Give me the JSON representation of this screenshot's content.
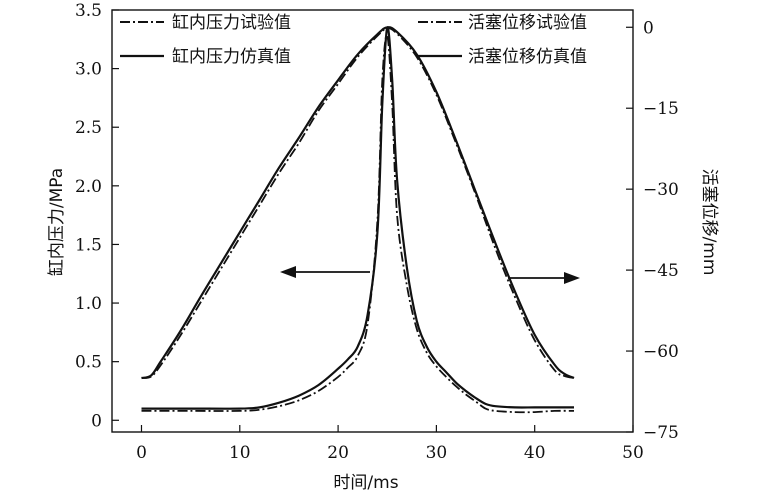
{
  "chart_data": {
    "type": "line",
    "title": "",
    "xlabel": "时间/ms",
    "ylabel_left": "缸内压力/MPa",
    "ylabel_right": "活塞位移/mm",
    "xlim": [
      -3,
      50
    ],
    "ylim_left": [
      -0.1,
      3.5
    ],
    "ylim_right": [
      -75,
      3.2
    ],
    "x_ticks": [
      "0",
      "10",
      "20",
      "30",
      "40",
      "50"
    ],
    "y_left_ticks": [
      "0",
      "0.5",
      "1.0",
      "1.5",
      "2.0",
      "2.5",
      "3.0",
      "3.5"
    ],
    "y_right_ticks": [
      "0",
      "−15",
      "−30",
      "−45",
      "−60",
      "−75"
    ],
    "grid": false,
    "legend_left": [
      "缸内压力试验值",
      "缸内压力仿真值"
    ],
    "legend_right": [
      "活塞位移试验值",
      "活塞位移仿真值"
    ],
    "series": [
      {
        "name": "缸内压力试验值",
        "axis": "left",
        "style": "dashdot",
        "x": [
          0,
          5,
          10,
          12,
          14,
          16,
          18,
          20,
          21,
          22,
          23,
          24,
          24.5,
          25,
          25.5,
          26,
          27,
          28,
          29,
          30,
          31,
          32,
          33,
          34,
          35,
          36,
          38,
          40,
          42,
          44
        ],
        "y": [
          0.08,
          0.08,
          0.08,
          0.09,
          0.12,
          0.17,
          0.25,
          0.37,
          0.45,
          0.55,
          0.82,
          1.7,
          2.9,
          3.28,
          2.7,
          1.75,
          1.15,
          0.78,
          0.58,
          0.46,
          0.37,
          0.29,
          0.22,
          0.16,
          0.1,
          0.08,
          0.07,
          0.07,
          0.08,
          0.08
        ]
      },
      {
        "name": "缸内压力仿真值",
        "axis": "left",
        "style": "solid",
        "x": [
          0,
          5,
          10,
          12,
          14,
          16,
          18,
          20,
          21,
          22,
          23,
          24,
          24.5,
          25,
          25.5,
          26,
          27,
          28,
          29,
          30,
          31,
          32,
          33,
          34,
          35,
          36,
          38,
          40,
          42,
          44
        ],
        "y": [
          0.1,
          0.1,
          0.1,
          0.11,
          0.15,
          0.21,
          0.3,
          0.44,
          0.52,
          0.63,
          0.9,
          1.6,
          2.7,
          3.35,
          2.9,
          2.05,
          1.3,
          0.85,
          0.63,
          0.5,
          0.41,
          0.32,
          0.25,
          0.19,
          0.14,
          0.12,
          0.11,
          0.11,
          0.11,
          0.11
        ]
      },
      {
        "name": "活塞位移试验值",
        "axis": "right",
        "style": "dashdot",
        "x": [
          0,
          1,
          2,
          4,
          6,
          8,
          10,
          12,
          14,
          16,
          18,
          20,
          22,
          24,
          25,
          26,
          28,
          30,
          32,
          34,
          36,
          38,
          40,
          42,
          43,
          44
        ],
        "y": [
          -65,
          -64.7,
          -62.5,
          -57,
          -51,
          -45,
          -39,
          -33,
          -27,
          -21.5,
          -15.5,
          -10.5,
          -5.5,
          -1.6,
          -0.2,
          -1.2,
          -5.5,
          -12.5,
          -21.5,
          -31,
          -41,
          -50,
          -58,
          -63.5,
          -64.6,
          -65
        ]
      },
      {
        "name": "活塞位移仿真值",
        "axis": "right",
        "style": "solid",
        "x": [
          0,
          1,
          2,
          4,
          6,
          8,
          10,
          12,
          14,
          16,
          18,
          20,
          22,
          24,
          25,
          26,
          28,
          30,
          32,
          34,
          36,
          38,
          40,
          42,
          43,
          44
        ],
        "y": [
          -65,
          -64.5,
          -61.8,
          -56.2,
          -50,
          -44,
          -38,
          -32,
          -26,
          -20.5,
          -14.8,
          -9.8,
          -5,
          -1.3,
          0,
          -0.9,
          -5,
          -12,
          -21,
          -30.5,
          -40,
          -49,
          -57,
          -62.5,
          -64.2,
          -65
        ]
      }
    ],
    "annotations": [
      {
        "type": "arrow",
        "direction": "left",
        "meaning": "pressure curves use left axis"
      },
      {
        "type": "arrow",
        "direction": "right",
        "meaning": "displacement curves use right axis"
      }
    ]
  }
}
